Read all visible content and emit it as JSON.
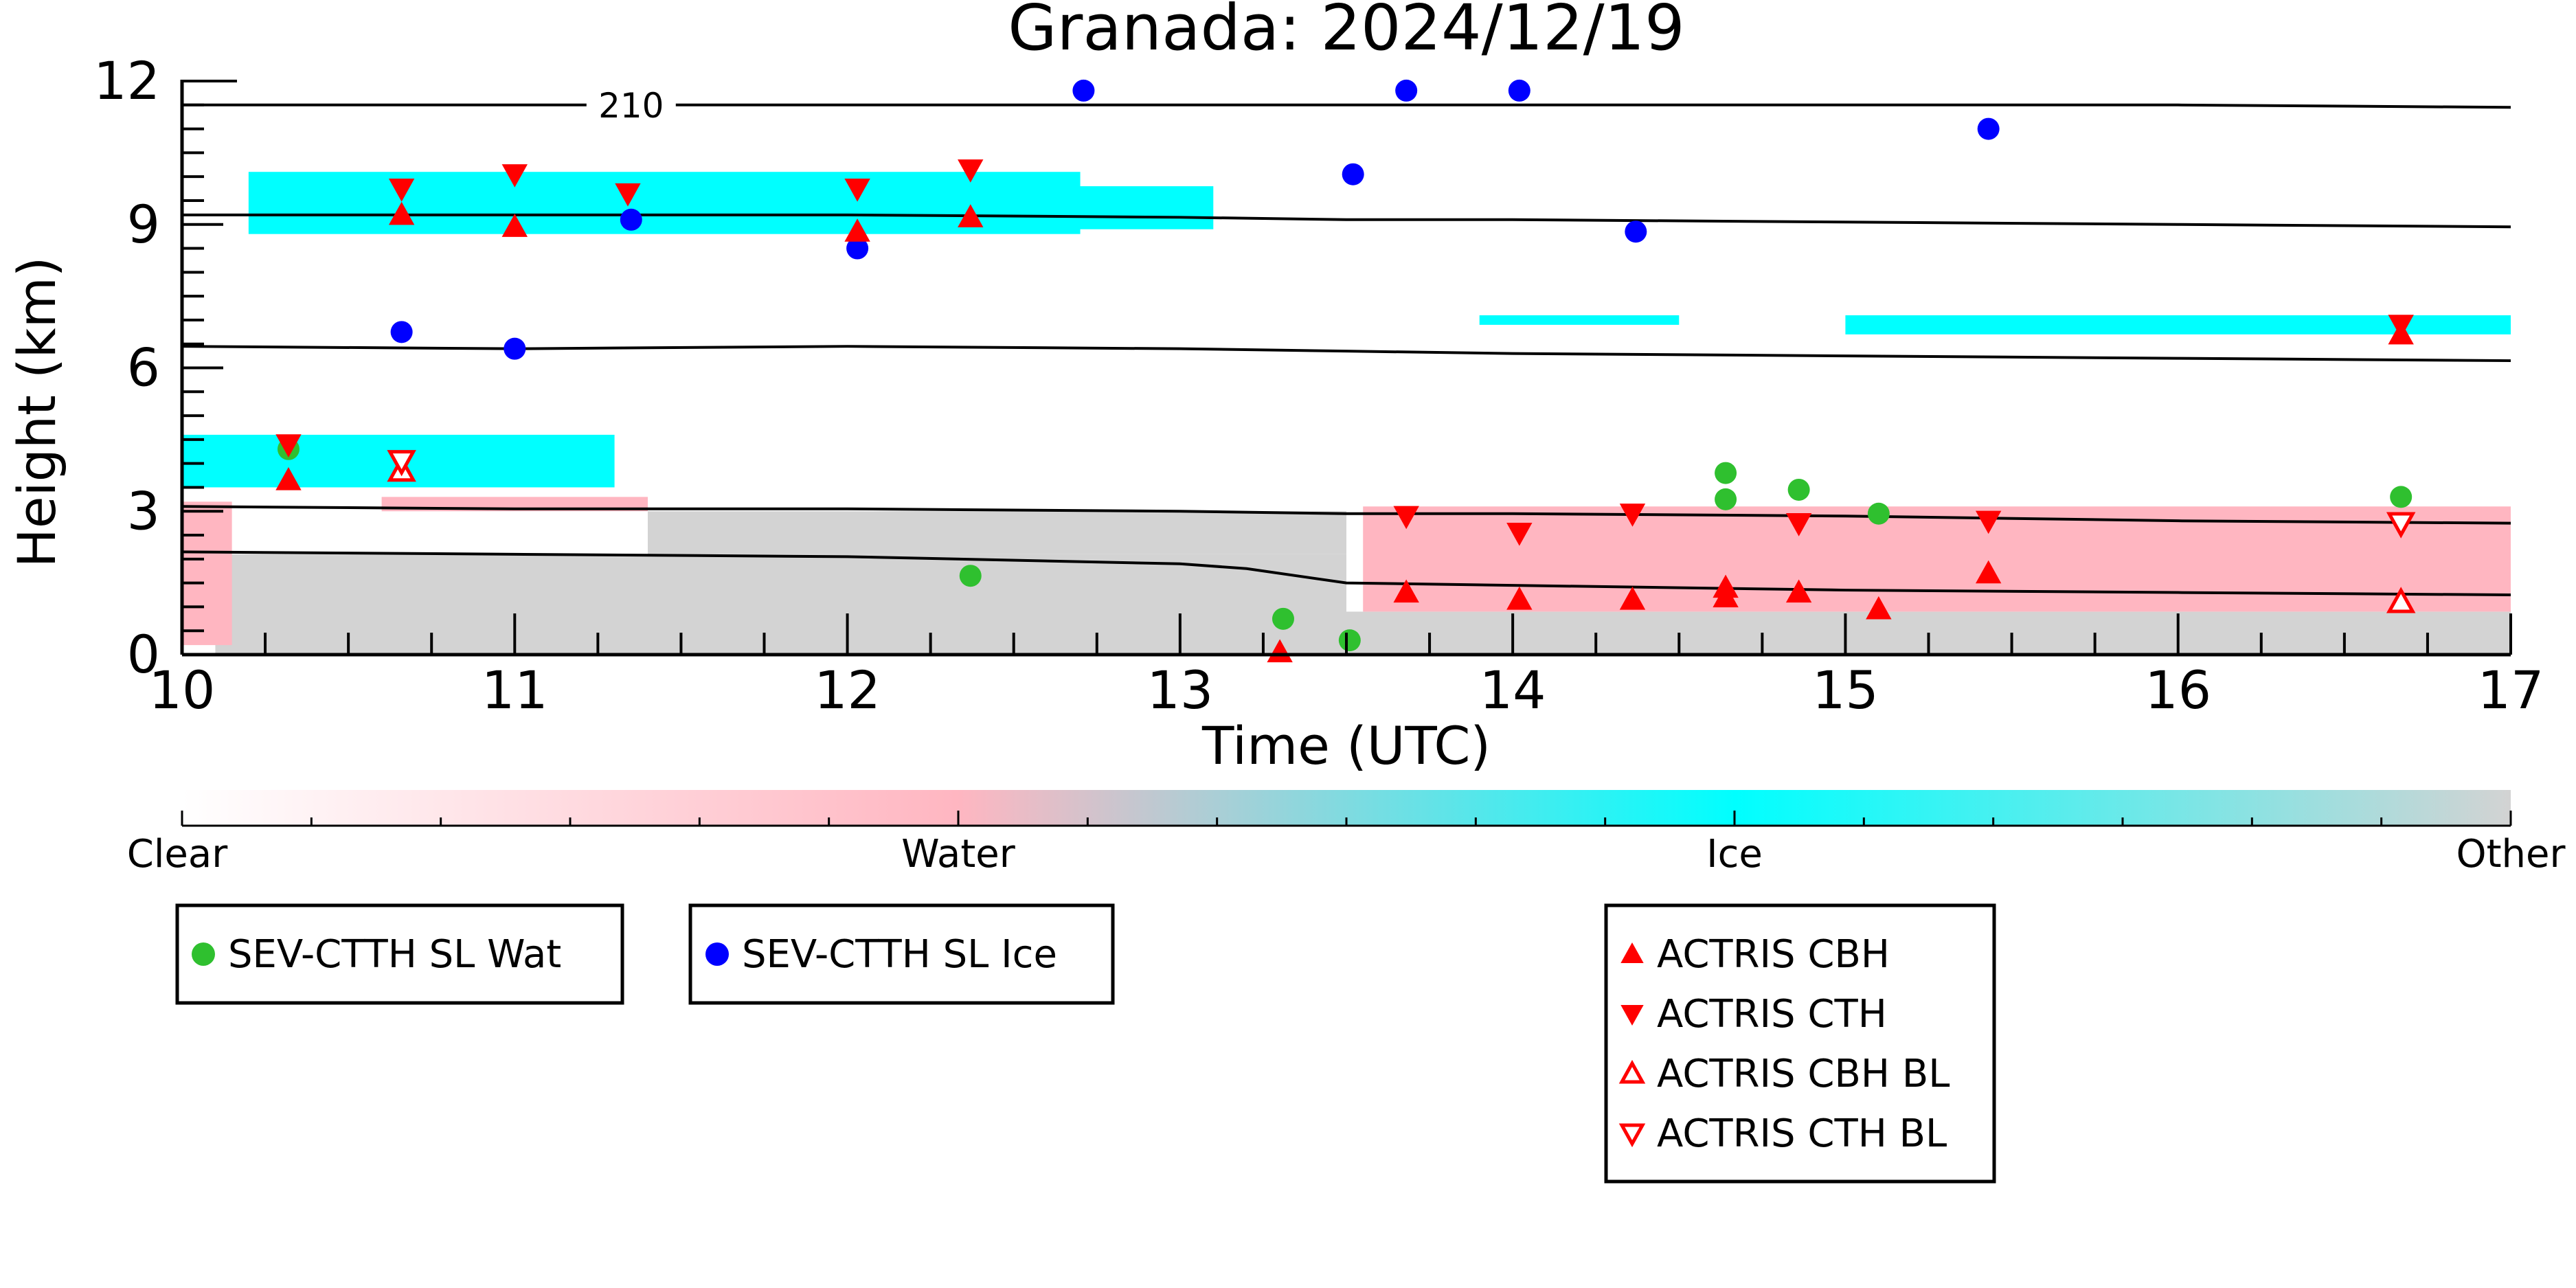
{
  "chart_data": {
    "type": "scatter",
    "title": "Granada: 2024/12/19",
    "xlabel": "Time (UTC)",
    "ylabel": "Height (km)",
    "xlim": [
      10,
      17
    ],
    "ylim": [
      0,
      12
    ],
    "xticks": [
      10,
      11,
      12,
      13,
      14,
      15,
      16,
      17
    ],
    "yticks": [
      0,
      3,
      6,
      9,
      12
    ],
    "grid": false,
    "background_classes": {
      "description_labels": [
        "Clear",
        "Water",
        "Ice",
        "Other"
      ],
      "colors": {
        "Clear": "#ffffff",
        "Water": "#ffb6c1",
        "Ice": "#00ffff",
        "Other": "#d3d3d3"
      },
      "regions": [
        {
          "class": "Other",
          "t_start": 10.1,
          "t_end": 13.5,
          "h_bottom": 0.0,
          "h_top": 2.1
        },
        {
          "class": "Other",
          "t_start": 11.4,
          "t_end": 13.5,
          "h_bottom": 2.1,
          "h_top": 3.0
        },
        {
          "class": "Other",
          "t_start": 13.5,
          "t_end": 17.0,
          "h_bottom": 0.0,
          "h_top": 0.9
        },
        {
          "class": "Water",
          "t_start": 13.55,
          "t_end": 17.0,
          "h_bottom": 0.9,
          "h_top": 3.1
        },
        {
          "class": "Water",
          "t_start": 10.0,
          "t_end": 10.15,
          "h_bottom": 0.2,
          "h_top": 3.2
        },
        {
          "class": "Water",
          "t_start": 10.6,
          "t_end": 11.4,
          "h_bottom": 3.0,
          "h_top": 3.3
        },
        {
          "class": "Ice",
          "t_start": 10.0,
          "t_end": 11.3,
          "h_bottom": 3.5,
          "h_top": 4.6
        },
        {
          "class": "Ice",
          "t_start": 10.2,
          "t_end": 12.7,
          "h_bottom": 8.8,
          "h_top": 10.1
        },
        {
          "class": "Ice",
          "t_start": 12.3,
          "t_end": 13.1,
          "h_bottom": 8.9,
          "h_top": 9.8
        },
        {
          "class": "Ice",
          "t_start": 13.9,
          "t_end": 14.5,
          "h_bottom": 6.9,
          "h_top": 7.1
        },
        {
          "class": "Ice",
          "t_start": 15.0,
          "t_end": 17.0,
          "h_bottom": 6.7,
          "h_top": 7.1
        }
      ]
    },
    "lines": [
      {
        "label": "210",
        "x": [
          10,
          11,
          12,
          13,
          13.5,
          14,
          15,
          16,
          17
        ],
        "y": [
          11.5,
          11.5,
          11.5,
          11.5,
          11.5,
          11.5,
          11.5,
          11.5,
          11.45
        ]
      },
      {
        "x": [
          10,
          11,
          12,
          13,
          13.5,
          14,
          15,
          16,
          17
        ],
        "y": [
          9.2,
          9.2,
          9.2,
          9.15,
          9.1,
          9.1,
          9.05,
          9.0,
          8.95
        ]
      },
      {
        "x": [
          10,
          11,
          12,
          13,
          13.5,
          14,
          15,
          16,
          17
        ],
        "y": [
          6.45,
          6.4,
          6.45,
          6.4,
          6.35,
          6.3,
          6.25,
          6.2,
          6.15
        ]
      },
      {
        "x": [
          10,
          11,
          12,
          13,
          13.5,
          14,
          15,
          16,
          17
        ],
        "y": [
          3.1,
          3.05,
          3.05,
          3.0,
          2.95,
          2.95,
          2.9,
          2.8,
          2.75
        ]
      },
      {
        "x": [
          10,
          11,
          12,
          13,
          13.2,
          13.5,
          14,
          15,
          16,
          17
        ],
        "y": [
          2.15,
          2.1,
          2.05,
          1.9,
          1.8,
          1.5,
          1.45,
          1.35,
          1.3,
          1.25
        ]
      }
    ],
    "series": [
      {
        "name": "SEV-CTTH SL Wat",
        "marker": "circle",
        "color": "#2fc02f",
        "x": [
          10.32,
          12.37,
          13.31,
          13.51,
          14.64,
          14.64,
          14.86,
          15.1,
          16.67
        ],
        "y": [
          4.3,
          1.65,
          0.75,
          0.3,
          3.8,
          3.25,
          3.45,
          2.95,
          3.3
        ]
      },
      {
        "name": "SEV-CTTH SL Ice",
        "marker": "circle",
        "color": "#0000ff",
        "x": [
          10.66,
          11.0,
          11.35,
          12.03,
          12.71,
          13.52,
          13.68,
          14.02,
          14.37,
          15.43
        ],
        "y": [
          6.75,
          6.4,
          9.1,
          8.5,
          11.8,
          10.05,
          11.8,
          11.8,
          8.85,
          11.0
        ]
      },
      {
        "name": "ACTRIS CBH",
        "marker": "triangle-up",
        "color": "#ff0000",
        "filled": true,
        "x": [
          10.32,
          10.66,
          11.0,
          12.03,
          12.37,
          13.3,
          13.68,
          14.02,
          14.36,
          14.64,
          14.64,
          14.86,
          15.1,
          15.43,
          16.67
        ],
        "y": [
          3.65,
          9.2,
          8.95,
          8.85,
          9.15,
          0.05,
          1.3,
          1.15,
          1.15,
          1.2,
          1.4,
          1.3,
          0.95,
          1.7,
          6.7
        ]
      },
      {
        "name": "ACTRIS CTH",
        "marker": "triangle-down",
        "color": "#ff0000",
        "filled": true,
        "x": [
          10.32,
          10.66,
          11.0,
          11.34,
          12.03,
          12.37,
          13.68,
          14.02,
          14.36,
          14.86,
          15.43,
          16.67
        ],
        "y": [
          4.4,
          9.75,
          10.05,
          9.65,
          9.75,
          10.15,
          2.9,
          2.55,
          2.95,
          2.75,
          2.8,
          6.9
        ]
      },
      {
        "name": "ACTRIS CBH BL",
        "marker": "triangle-up",
        "color": "#ff0000",
        "filled": false,
        "x": [
          10.66,
          16.67
        ],
        "y": [
          3.85,
          1.1
        ]
      },
      {
        "name": "ACTRIS CTH BL",
        "marker": "triangle-down",
        "color": "#ff0000",
        "filled": false,
        "x": [
          10.66,
          16.67
        ],
        "y": [
          4.05,
          2.75
        ]
      }
    ],
    "legends": [
      {
        "placement": "below-left",
        "entries": [
          "SEV-CTTH SL Wat"
        ]
      },
      {
        "placement": "below-center-left",
        "entries": [
          "SEV-CTTH SL Ice"
        ]
      },
      {
        "placement": "below-center-right",
        "entries": [
          "ACTRIS CBH",
          "ACTRIS CTH",
          "ACTRIS CBH BL",
          "ACTRIS CTH BL"
        ]
      }
    ]
  }
}
